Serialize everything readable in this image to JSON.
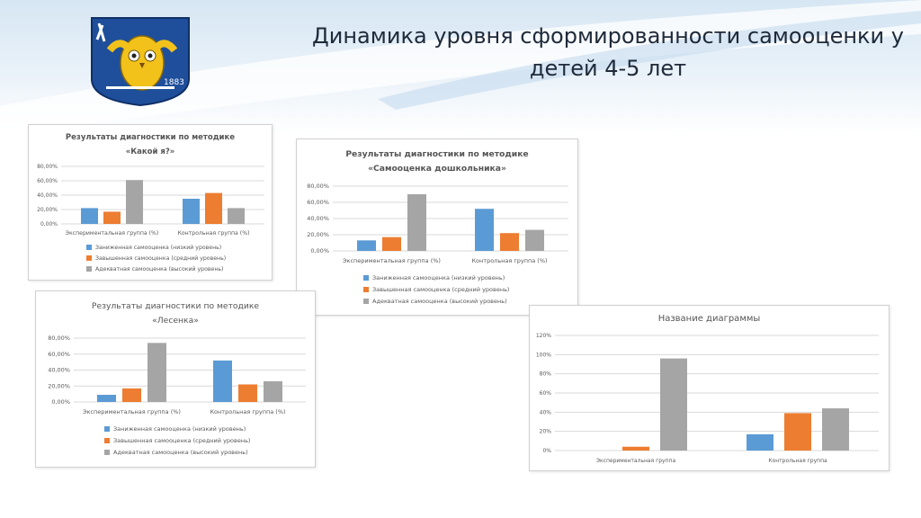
{
  "slide": {
    "title_line1": "Динамика уровня сформированности самооценки у",
    "title_line2": "детей 4-5 лет",
    "crest_icon": "owl-crest-icon",
    "crest_inscription": "1883"
  },
  "colors": {
    "series_low": "#5b9bd5",
    "series_inflated": "#ed7d31",
    "series_adequate": "#a5a5a5",
    "gridline": "#d9d9d9"
  },
  "chart_data": [
    {
      "type": "bar",
      "title_lines": [
        "Результаты диагностики по методике",
        "«Какой я?»"
      ],
      "categories": [
        "Экспериментальная группа (%)",
        "Контрольная группа (%)"
      ],
      "series": [
        {
          "name": "Заниженная самооценка (низкий уровень)",
          "values": [
            22,
            35
          ]
        },
        {
          "name": "Завышенная самооценка (средний уровень)",
          "values": [
            17,
            43
          ]
        },
        {
          "name": "Адекватная самооценка (высокий уровень)",
          "values": [
            61,
            22
          ]
        }
      ],
      "yticks": [
        "0,00%",
        "20,00%",
        "40,00%",
        "60,00%",
        "80,00%"
      ],
      "ylim": [
        0,
        80
      ],
      "grid": true,
      "legend": "bottom"
    },
    {
      "type": "bar",
      "title_lines": [
        "Результаты диагностики по методике",
        "«Самооценка дошкольника»"
      ],
      "categories": [
        "Экспериментальная группа (%)",
        "Контрольная группа (%)"
      ],
      "series": [
        {
          "name": "Заниженная самооценка (низкий уровень)",
          "values": [
            13,
            52
          ]
        },
        {
          "name": "Завышенная самооценка (средний уровень)",
          "values": [
            17,
            22
          ]
        },
        {
          "name": "Адекватная самооценка (высокий уровень)",
          "values": [
            70,
            26
          ]
        }
      ],
      "yticks": [
        "0,00%",
        "20,00%",
        "40,00%",
        "60,00%",
        "80,00%"
      ],
      "ylim": [
        0,
        80
      ],
      "grid": true,
      "legend": "bottom"
    },
    {
      "type": "bar",
      "title_lines": [
        "Результаты диагностики по методике",
        "«Лесенка»"
      ],
      "categories": [
        "Экспериментальная группа (%)",
        "Контрольная группа (%)"
      ],
      "series": [
        {
          "name": "Заниженная самооценка (низкий уровень)",
          "values": [
            9,
            52
          ]
        },
        {
          "name": "Завышенная самооценка (средний уровень)",
          "values": [
            17,
            22
          ]
        },
        {
          "name": "Адекватная самооценка (высокий уровень)",
          "values": [
            74,
            26
          ]
        }
      ],
      "yticks": [
        "0,00%",
        "20,00%",
        "40,00%",
        "60,00%",
        "80,00%"
      ],
      "ylim": [
        0,
        80
      ],
      "grid": true,
      "legend": "bottom"
    },
    {
      "type": "bar",
      "title_lines": [
        "Название диаграммы"
      ],
      "categories": [
        "Экспериментальная группа",
        "Контрольная группа"
      ],
      "series": [
        {
          "values": [
            0,
            17
          ]
        },
        {
          "values": [
            4,
            39
          ]
        },
        {
          "values": [
            96,
            44
          ]
        }
      ],
      "yticks": [
        "0%",
        "20%",
        "40%",
        "60%",
        "80%",
        "100%",
        "120%"
      ],
      "ylim": [
        0,
        120
      ],
      "grid": true,
      "legend": "none"
    }
  ]
}
